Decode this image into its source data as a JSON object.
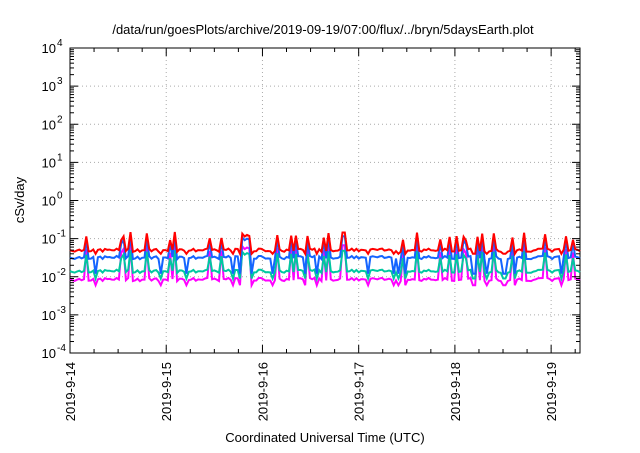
{
  "chart_data": {
    "type": "line",
    "title": "/data/run/goesPlots/archive/2019-09-19/07:00/flux/../bryn/5daysEarth.plot",
    "xlabel": "Coordinated Universal Time (UTC)",
    "ylabel": "cSv/day",
    "yscale": "log",
    "ylim": [
      0.0001,
      10000
    ],
    "xlim": [
      0,
      5.3
    ],
    "grid": true,
    "x_ticks": [
      {
        "x": 0,
        "label": "2019-9-14"
      },
      {
        "x": 1,
        "label": "2019-9-15"
      },
      {
        "x": 2,
        "label": "2019-9-16"
      },
      {
        "x": 3,
        "label": "2019-9-17"
      },
      {
        "x": 4,
        "label": "2019-9-18"
      },
      {
        "x": 5,
        "label": "2019-9-19"
      }
    ],
    "y_ticks": [
      {
        "value": 0.0001,
        "base": "10",
        "exp": "-4"
      },
      {
        "value": 0.001,
        "base": "10",
        "exp": "-3"
      },
      {
        "value": 0.01,
        "base": "10",
        "exp": "-2"
      },
      {
        "value": 0.1,
        "base": "10",
        "exp": "-1"
      },
      {
        "value": 1,
        "base": "10",
        "exp": "0"
      },
      {
        "value": 10,
        "base": "10",
        "exp": "1"
      },
      {
        "value": 100,
        "base": "10",
        "exp": "2"
      },
      {
        "value": 1000,
        "base": "10",
        "exp": "3"
      },
      {
        "value": 10000,
        "base": "10",
        "exp": "4"
      }
    ],
    "series": [
      {
        "color": "#ff0000",
        "baseline": 0.05,
        "spike_low": 0.045,
        "spike_high": 0.15,
        "dip": 0.04
      },
      {
        "color": "#1464ff",
        "baseline": 0.032,
        "spike_low": 0.03,
        "spike_high": 0.12,
        "dip": 0.012
      },
      {
        "color": "#00c8a0",
        "baseline": 0.014,
        "spike_low": 0.013,
        "spike_high": 0.05,
        "dip": 0.009
      },
      {
        "color": "#ff00ff",
        "baseline": 0.0085,
        "spike_low": 0.008,
        "spike_high": 0.07,
        "dip": 0.006
      }
    ]
  }
}
